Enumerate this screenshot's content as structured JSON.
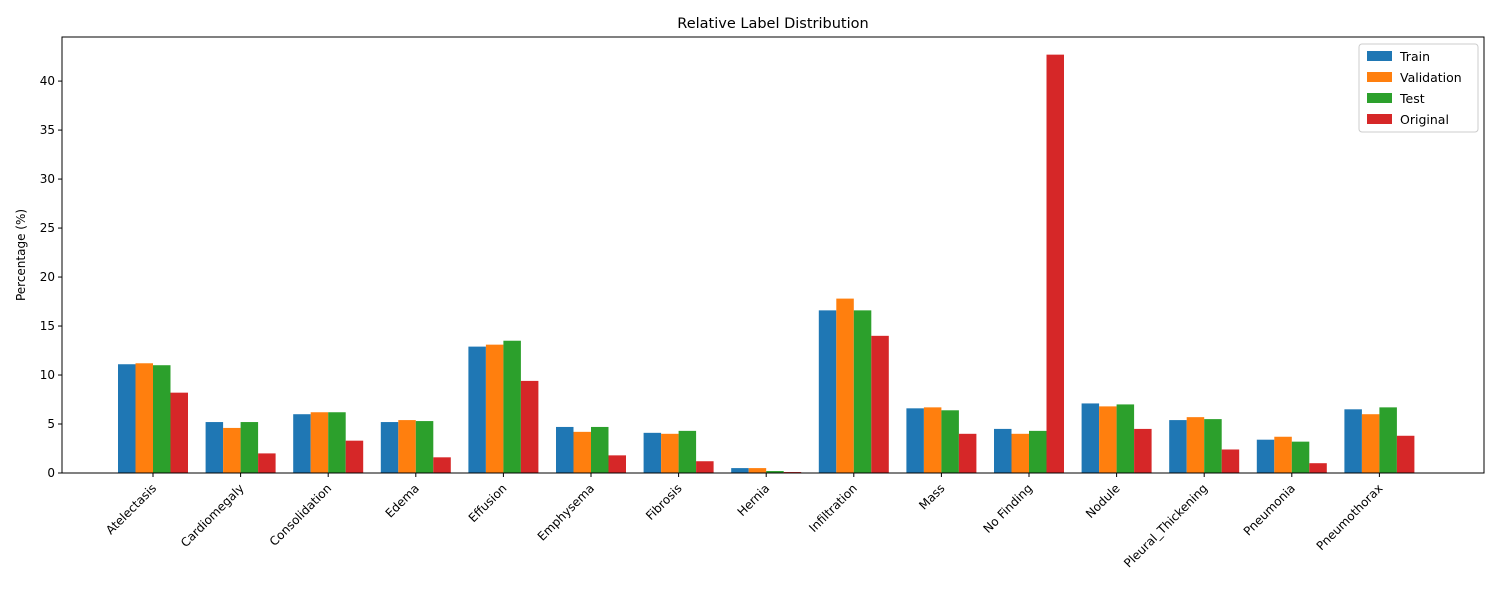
{
  "chart_data": {
    "type": "bar",
    "title": "Relative Label Distribution",
    "xlabel": "",
    "ylabel": "Percentage (%)",
    "ylim": [
      0,
      44.5
    ],
    "yticks": [
      0,
      5,
      10,
      15,
      20,
      25,
      30,
      35,
      40
    ],
    "grid": false,
    "legend_placement": "top-right",
    "categories": [
      "Atelectasis",
      "Cardiomegaly",
      "Consolidation",
      "Edema",
      "Effusion",
      "Emphysema",
      "Fibrosis",
      "Hernia",
      "Infiltration",
      "Mass",
      "No Finding",
      "Nodule",
      "Pleural_Thickening",
      "Pneumonia",
      "Pneumothorax"
    ],
    "series": [
      {
        "name": "Train",
        "color": "#1f77b4",
        "values": [
          11.1,
          5.2,
          6.0,
          5.2,
          12.9,
          4.7,
          4.1,
          0.5,
          16.6,
          6.6,
          4.5,
          7.1,
          5.4,
          3.4,
          6.5
        ]
      },
      {
        "name": "Validation",
        "color": "#ff7f0e",
        "values": [
          11.2,
          4.6,
          6.2,
          5.4,
          13.1,
          4.2,
          4.0,
          0.5,
          17.8,
          6.7,
          4.0,
          6.8,
          5.7,
          3.7,
          6.0
        ]
      },
      {
        "name": "Test",
        "color": "#2ca02c",
        "values": [
          11.0,
          5.2,
          6.2,
          5.3,
          13.5,
          4.7,
          4.3,
          0.2,
          16.6,
          6.4,
          4.3,
          7.0,
          5.5,
          3.2,
          6.7
        ]
      },
      {
        "name": "Original",
        "color": "#d62728",
        "values": [
          8.2,
          2.0,
          3.3,
          1.6,
          9.4,
          1.8,
          1.2,
          0.1,
          14.0,
          4.0,
          42.7,
          4.5,
          2.4,
          1.0,
          3.8
        ]
      }
    ]
  }
}
